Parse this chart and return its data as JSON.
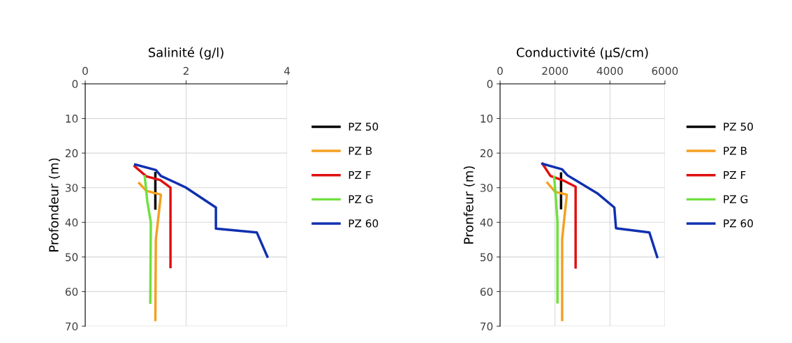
{
  "chart_data": [
    {
      "type": "line",
      "xlabel": "Salinité (g/l)",
      "ylabel": "Profondeur (m)",
      "xlim": [
        0,
        4
      ],
      "xticks": [
        0,
        2,
        4
      ],
      "ylim": [
        70,
        0
      ],
      "yticks": [
        0,
        10,
        20,
        30,
        40,
        50,
        60,
        70
      ],
      "grid": true,
      "legend": "right",
      "marker": "none",
      "line_style": "solid",
      "series": [
        {
          "name": "PZ 50",
          "color": "#000000",
          "x": [
            1.39,
            1.39
          ],
          "values": [
            25.8,
            36
          ]
        },
        {
          "name": "PZ B",
          "color": "#f4a020",
          "x": [
            1.07,
            1.21,
            1.5,
            1.4,
            1.39
          ],
          "values": [
            28.7,
            30.9,
            32,
            45,
            68.2
          ]
        },
        {
          "name": "PZ F",
          "color": "#e01010",
          "x": [
            0.98,
            1.21,
            1.49,
            1.69,
            1.69
          ],
          "values": [
            23.8,
            26.7,
            27.8,
            30,
            52.9
          ]
        },
        {
          "name": "PZ G",
          "color": "#70e040",
          "x": [
            1.18,
            1.23,
            1.3,
            1.29
          ],
          "values": [
            26.7,
            33.9,
            40,
            63.2
          ]
        },
        {
          "name": "PZ 60",
          "color": "#1030b0",
          "x": [
            0.99,
            1.4,
            1.5,
            1.99,
            2.59,
            2.59,
            3.4,
            3.61
          ],
          "values": [
            23.3,
            24.9,
            26.6,
            29.9,
            35.7,
            41.8,
            42.9,
            49.9
          ]
        }
      ]
    },
    {
      "type": "line",
      "xlabel": "Conductivité (µS/cm)",
      "ylabel": "Pronfeur (m)",
      "xlim": [
        0,
        6000
      ],
      "xticks": [
        0,
        2000,
        4000,
        6000
      ],
      "ylim": [
        70,
        0
      ],
      "yticks": [
        0,
        10,
        20,
        30,
        40,
        50,
        60,
        70
      ],
      "grid": true,
      "legend": "right",
      "marker": "none",
      "line_style": "solid",
      "series": [
        {
          "name": "PZ 50",
          "color": "#000000",
          "x": [
            2220,
            2220
          ],
          "values": [
            25.9,
            35.9
          ]
        },
        {
          "name": "PZ B",
          "color": "#f4a020",
          "x": [
            1725,
            2005,
            2430,
            2260,
            2260
          ],
          "values": [
            28.6,
            31.2,
            32,
            44.8,
            68.2
          ]
        },
        {
          "name": "PZ F",
          "color": "#e01010",
          "x": [
            1545,
            1835,
            2300,
            2750,
            2750
          ],
          "values": [
            23.1,
            26.6,
            27.9,
            29.7,
            53
          ]
        },
        {
          "name": "PZ G",
          "color": "#70e040",
          "x": [
            1970,
            2020,
            2090,
            2090
          ],
          "values": [
            26.9,
            32,
            39.7,
            63.1
          ]
        },
        {
          "name": "PZ 60",
          "color": "#1030b0",
          "x": [
            1545,
            2260,
            2450,
            3540,
            4160,
            4220,
            5435,
            5720
          ],
          "values": [
            23.1,
            24.7,
            26.4,
            31.6,
            35.7,
            41.7,
            42.9,
            50
          ]
        }
      ]
    }
  ]
}
